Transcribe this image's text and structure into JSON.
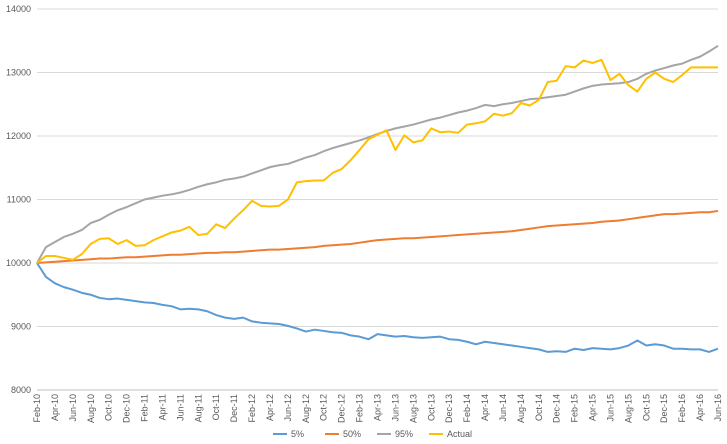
{
  "chart_data": {
    "type": "line",
    "title": "",
    "xlabel": "",
    "ylabel": "",
    "ylim": [
      8000,
      14000
    ],
    "y_ticks": [
      8000,
      9000,
      10000,
      11000,
      12000,
      13000,
      14000
    ],
    "grid": "horizontal",
    "legend_position": "bottom",
    "x_tick_labels": [
      "Feb-10",
      "Apr-10",
      "Jun-10",
      "Aug-10",
      "Oct-10",
      "Dec-10",
      "Feb-11",
      "Apr-11",
      "Jun-11",
      "Aug-11",
      "Oct-11",
      "Dec-11",
      "Feb-12",
      "Apr-12",
      "Jun-12",
      "Aug-12",
      "Oct-12",
      "Dec-12",
      "Feb-13",
      "Apr-13",
      "Jun-13",
      "Aug-13",
      "Oct-13",
      "Dec-13",
      "Feb-14",
      "Apr-14",
      "Jun-14",
      "Aug-14",
      "Oct-14",
      "Dec-14",
      "Feb-15",
      "Apr-15",
      "Jun-15",
      "Aug-15",
      "Oct-15",
      "Dec-15",
      "Feb-16",
      "Apr-16",
      "Jun-16"
    ],
    "x": [
      "Feb-10",
      "Mar-10",
      "Apr-10",
      "May-10",
      "Jun-10",
      "Jul-10",
      "Aug-10",
      "Sep-10",
      "Oct-10",
      "Nov-10",
      "Dec-10",
      "Jan-11",
      "Feb-11",
      "Mar-11",
      "Apr-11",
      "May-11",
      "Jun-11",
      "Jul-11",
      "Aug-11",
      "Sep-11",
      "Oct-11",
      "Nov-11",
      "Dec-11",
      "Jan-12",
      "Feb-12",
      "Mar-12",
      "Apr-12",
      "May-12",
      "Jun-12",
      "Jul-12",
      "Aug-12",
      "Sep-12",
      "Oct-12",
      "Nov-12",
      "Dec-12",
      "Jan-13",
      "Feb-13",
      "Mar-13",
      "Apr-13",
      "May-13",
      "Jun-13",
      "Jul-13",
      "Aug-13",
      "Sep-13",
      "Oct-13",
      "Nov-13",
      "Dec-13",
      "Jan-14",
      "Feb-14",
      "Mar-14",
      "Apr-14",
      "May-14",
      "Jun-14",
      "Jul-14",
      "Aug-14",
      "Sep-14",
      "Oct-14",
      "Nov-14",
      "Dec-14",
      "Jan-15",
      "Feb-15",
      "Mar-15",
      "Apr-15",
      "May-15",
      "Jun-15",
      "Jul-15",
      "Aug-15",
      "Sep-15",
      "Oct-15",
      "Nov-15",
      "Dec-15",
      "Jan-16",
      "Feb-16",
      "Mar-16",
      "Apr-16",
      "May-16",
      "Jun-16"
    ],
    "series": [
      {
        "name": "5%",
        "color": "#5b9bd5",
        "values": [
          10000,
          9780,
          9680,
          9620,
          9580,
          9530,
          9500,
          9450,
          9430,
          9440,
          9420,
          9400,
          9380,
          9370,
          9340,
          9320,
          9270,
          9280,
          9270,
          9240,
          9180,
          9140,
          9120,
          9140,
          9080,
          9060,
          9050,
          9040,
          9010,
          8970,
          8920,
          8950,
          8930,
          8910,
          8900,
          8860,
          8840,
          8800,
          8880,
          8860,
          8840,
          8850,
          8830,
          8820,
          8830,
          8840,
          8800,
          8790,
          8760,
          8720,
          8760,
          8740,
          8720,
          8700,
          8680,
          8660,
          8640,
          8600,
          8610,
          8600,
          8650,
          8630,
          8660,
          8650,
          8640,
          8660,
          8700,
          8780,
          8700,
          8720,
          8700,
          8650,
          8650,
          8640,
          8640,
          8600,
          8650
        ]
      },
      {
        "name": "50%",
        "color": "#ed7d31",
        "values": [
          10000,
          10010,
          10020,
          10030,
          10040,
          10050,
          10060,
          10070,
          10070,
          10080,
          10090,
          10090,
          10100,
          10110,
          10120,
          10130,
          10130,
          10140,
          10150,
          10160,
          10160,
          10170,
          10170,
          10180,
          10190,
          10200,
          10210,
          10210,
          10220,
          10230,
          10240,
          10250,
          10270,
          10280,
          10290,
          10300,
          10320,
          10340,
          10360,
          10370,
          10380,
          10390,
          10390,
          10400,
          10410,
          10420,
          10430,
          10440,
          10450,
          10460,
          10470,
          10480,
          10490,
          10500,
          10520,
          10540,
          10560,
          10580,
          10590,
          10600,
          10610,
          10620,
          10630,
          10650,
          10660,
          10670,
          10690,
          10710,
          10730,
          10750,
          10770,
          10770,
          10780,
          10790,
          10800,
          10800,
          10820
        ]
      },
      {
        "name": "95%",
        "color": "#a5a5a5",
        "values": [
          10000,
          10250,
          10330,
          10410,
          10460,
          10520,
          10630,
          10680,
          10760,
          10830,
          10880,
          10940,
          11000,
          11030,
          11060,
          11080,
          11110,
          11150,
          11200,
          11240,
          11270,
          11310,
          11330,
          11360,
          11410,
          11460,
          11510,
          11540,
          11560,
          11610,
          11660,
          11700,
          11760,
          11810,
          11850,
          11890,
          11930,
          11980,
          12030,
          12080,
          12120,
          12150,
          12180,
          12220,
          12260,
          12290,
          12330,
          12370,
          12400,
          12440,
          12490,
          12470,
          12500,
          12520,
          12550,
          12580,
          12590,
          12610,
          12630,
          12650,
          12700,
          12750,
          12790,
          12810,
          12820,
          12830,
          12850,
          12900,
          12980,
          13030,
          13070,
          13110,
          13140,
          13200,
          13250,
          13330,
          13420
        ]
      },
      {
        "name": "Actual",
        "color": "#ffc000",
        "values": [
          10000,
          10110,
          10110,
          10080,
          10050,
          10140,
          10300,
          10380,
          10390,
          10300,
          10360,
          10270,
          10280,
          10360,
          10420,
          10480,
          10510,
          10570,
          10440,
          10460,
          10610,
          10550,
          10700,
          10830,
          10980,
          10900,
          10890,
          10900,
          11000,
          11270,
          11290,
          11300,
          11300,
          11420,
          11480,
          11620,
          11780,
          11950,
          12020,
          12090,
          11780,
          12010,
          11900,
          11930,
          12120,
          12060,
          12070,
          12050,
          12180,
          12200,
          12230,
          12350,
          12320,
          12360,
          12520,
          12480,
          12570,
          12850,
          12870,
          13100,
          13080,
          13190,
          13150,
          13200,
          12880,
          12980,
          12800,
          12700,
          12900,
          13000,
          12900,
          12850,
          12960,
          13080,
          13080,
          13080,
          13080
        ]
      }
    ]
  }
}
